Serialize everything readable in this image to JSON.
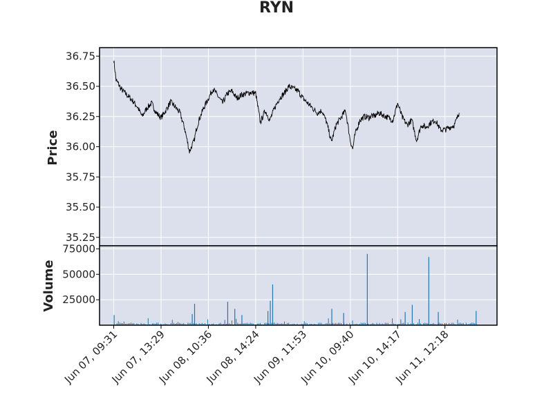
{
  "chart_data": [
    {
      "type": "line",
      "title": "RYN",
      "ylabel": "Price",
      "ylim": [
        35.18,
        36.82
      ],
      "yticks": [
        36.75,
        36.5,
        36.25,
        36.0,
        35.75,
        35.5,
        35.25
      ],
      "ytick_labels": [
        "36.75",
        "36.50",
        "36.25",
        "36.00",
        "35.75",
        "35.50",
        "35.25"
      ],
      "x_index_range": [
        -30,
        810
      ],
      "xticks": [
        0,
        100,
        200,
        300,
        400,
        500,
        600,
        700
      ],
      "xtick_labels": [
        "Jun 07, 09:31",
        "Jun 07, 13:29",
        "Jun 08, 10:36",
        "Jun 08, 14:24",
        "Jun 09, 11:53",
        "Jun 10, 09:40",
        "Jun 10, 14:17",
        "Jun 11, 12:18"
      ],
      "grid": true,
      "background": "#dce0ed",
      "line_color": "#000000",
      "series": [
        {
          "x": [
            0,
            5,
            10,
            15,
            20,
            30,
            40,
            50,
            60,
            70,
            80,
            90,
            100,
            110,
            120,
            130,
            140,
            150,
            160,
            170,
            175,
            180,
            190,
            200,
            210,
            220,
            230,
            240,
            250,
            260,
            270,
            280,
            290,
            300,
            310,
            320,
            330,
            340,
            345,
            350,
            360,
            370,
            380,
            390,
            400,
            410,
            420,
            430,
            440,
            450,
            460,
            470,
            480,
            490,
            500,
            505,
            510,
            520,
            530,
            540,
            545,
            550,
            560,
            570,
            580,
            590,
            600,
            610,
            620,
            630,
            640,
            650,
            660,
            670,
            680,
            690,
            700,
            710,
            720,
            730
          ],
          "values": [
            36.72,
            36.55,
            36.52,
            36.48,
            36.46,
            36.42,
            36.38,
            36.33,
            36.25,
            36.32,
            36.36,
            36.28,
            36.24,
            36.3,
            36.37,
            36.33,
            36.28,
            36.15,
            35.96,
            36.05,
            36.15,
            36.22,
            36.32,
            36.4,
            36.48,
            36.42,
            36.36,
            36.44,
            36.46,
            36.4,
            36.43,
            36.44,
            36.45,
            36.44,
            36.2,
            36.3,
            36.22,
            36.32,
            36.36,
            36.4,
            36.44,
            36.5,
            36.48,
            36.46,
            36.4,
            36.36,
            36.32,
            36.28,
            36.3,
            36.2,
            36.04,
            36.18,
            36.24,
            36.3,
            36.05,
            35.98,
            36.1,
            36.22,
            36.25,
            36.24,
            36.26,
            36.25,
            36.28,
            36.26,
            36.24,
            36.22,
            36.36,
            36.24,
            36.18,
            36.22,
            36.05,
            36.18,
            36.16,
            36.2,
            36.22,
            36.14,
            36.14,
            36.16,
            36.18,
            36.28
          ]
        }
      ]
    },
    {
      "type": "bar",
      "ylabel": "Volume",
      "ylim": [
        0,
        78000
      ],
      "yticks": [
        75000,
        50000,
        25000
      ],
      "ytick_labels": [
        "75000",
        "50000",
        "25000"
      ],
      "grid": true,
      "bar_color": "#1f77b4",
      "spikes": [
        {
          "x": 0,
          "value": 10000
        },
        {
          "x": 170,
          "value": 21000
        },
        {
          "x": 165,
          "value": 11000
        },
        {
          "x": 240,
          "value": 23000
        },
        {
          "x": 255,
          "value": 16000
        },
        {
          "x": 270,
          "value": 10000
        },
        {
          "x": 325,
          "value": 14000
        },
        {
          "x": 330,
          "value": 24000
        },
        {
          "x": 335,
          "value": 40000
        },
        {
          "x": 460,
          "value": 16000
        },
        {
          "x": 485,
          "value": 12000
        },
        {
          "x": 535,
          "value": 70000
        },
        {
          "x": 615,
          "value": 13000
        },
        {
          "x": 630,
          "value": 20000
        },
        {
          "x": 665,
          "value": 67000
        },
        {
          "x": 685,
          "value": 13000
        },
        {
          "x": 765,
          "value": 14000
        }
      ],
      "baseline_volume": 1500
    }
  ]
}
